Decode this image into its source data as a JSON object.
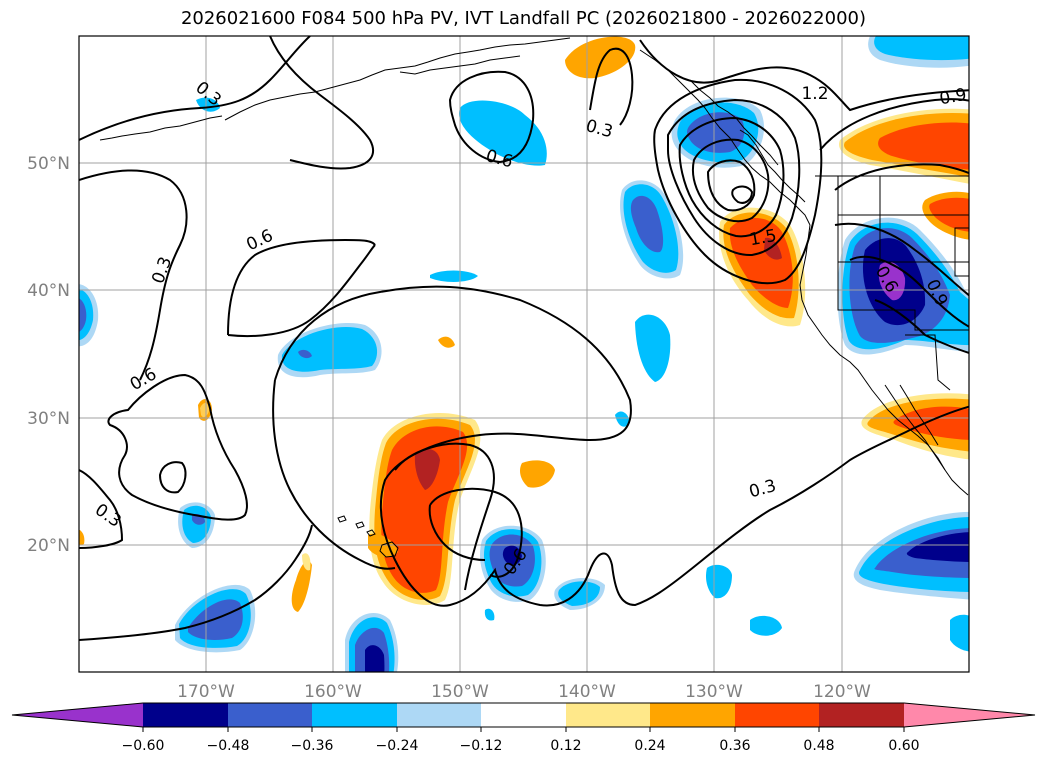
{
  "title": "2026021600 F084 500 hPa PV, IVT Landfall PC (2026021800 - 2026022000)",
  "map": {
    "projection": "equirectangular",
    "lon_range": [
      -180,
      -110
    ],
    "lat_range": [
      10,
      60
    ],
    "lon_ticks": [
      -170,
      -160,
      -150,
      -140,
      -130,
      -120
    ],
    "lat_ticks": [
      20,
      30,
      40,
      50
    ],
    "lon_labels": [
      "170°W",
      "160°W",
      "150°W",
      "140°W",
      "130°W",
      "120°W"
    ],
    "lat_labels": [
      "20°N",
      "30°N",
      "40°N",
      "50°N"
    ],
    "grid": true
  },
  "contour_labels": [
    {
      "text": "0.3",
      "lon": -170.0,
      "lat": 57.2
    },
    {
      "text": "0.6",
      "lon": -146.5,
      "lat": 51.5
    },
    {
      "text": "0.3",
      "lon": -138.9,
      "lat": 53.5
    },
    {
      "text": "0.6",
      "lon": -162.5,
      "lat": 44.0
    },
    {
      "text": "0.3",
      "lon": -176.9,
      "lat": 42.0
    },
    {
      "text": "0.6",
      "lon": -175.7,
      "lat": 33.0
    },
    {
      "text": "0.3",
      "lon": -177.9,
      "lat": 22.2
    },
    {
      "text": "1.5",
      "lon": -127.3,
      "lat": 44.3
    },
    {
      "text": "1.2",
      "lon": -121.7,
      "lat": 56.6
    },
    {
      "text": "0.9",
      "lon": -111.9,
      "lat": 56.4
    },
    {
      "text": "0.6",
      "lon": -117.0,
      "lat": 40.4
    },
    {
      "text": "0.9",
      "lon": -113.0,
      "lat": 40.0
    },
    {
      "text": "0.3",
      "lon": -126.1,
      "lat": 24.8
    },
    {
      "text": "0.6",
      "lon": -145.4,
      "lat": 18.7
    }
  ],
  "colorbar": {
    "ticks": [
      "−0.60",
      "−0.48",
      "−0.36",
      "−0.24",
      "−0.12",
      "0.12",
      "0.24",
      "0.36",
      "0.48",
      "0.60"
    ],
    "colors": [
      "#9932cc",
      "#00008b",
      "#3a5fcd",
      "#00bfff",
      "#add8f5",
      "#ffffff",
      "#ffe88a",
      "#ffa500",
      "#ff4500",
      "#b22222",
      "#ff88aa"
    ]
  },
  "fill_colors": {
    "neg_012": "#add8f5",
    "neg_024": "#00bfff",
    "neg_036": "#3a5fcd",
    "neg_048": "#00008b",
    "neg_060": "#9932cc",
    "pos_012": "#ffe88a",
    "pos_024": "#ffa500",
    "pos_036": "#ff4500",
    "pos_048": "#b22222"
  }
}
